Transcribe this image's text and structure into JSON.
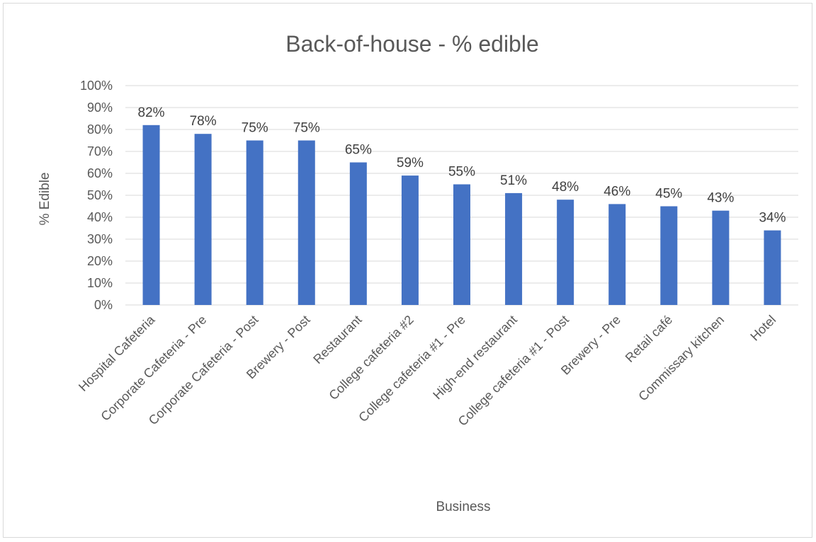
{
  "chart_data": {
    "type": "bar",
    "title": "Back-of-house - % edible",
    "xlabel": "Business",
    "ylabel": "% Edible",
    "categories": [
      "Hospital Cafeteria",
      "Corporate Cafeteria - Pre",
      "Corporate Cafeteria - Post",
      "Brewery - Post",
      "Restaurant",
      "College cafeteria #2",
      "College cafeteria #1 - Pre",
      "High-end restaurant",
      "College cafeteria #1 - Post",
      "Brewery - Pre",
      "Retail café",
      "Commissary kitchen",
      "Hotel"
    ],
    "values": [
      82,
      78,
      75,
      75,
      65,
      59,
      55,
      51,
      48,
      46,
      45,
      43,
      34
    ],
    "data_labels": [
      "82%",
      "78%",
      "75%",
      "75%",
      "65%",
      "59%",
      "55%",
      "51%",
      "48%",
      "46%",
      "45%",
      "43%",
      "34%"
    ],
    "ylim": [
      0,
      100
    ],
    "yticks": [
      "0%",
      "10%",
      "20%",
      "30%",
      "40%",
      "50%",
      "60%",
      "70%",
      "80%",
      "90%",
      "100%"
    ],
    "grid": true,
    "legend": "none",
    "bar_color": "#4472c4",
    "grid_color": "#d9d9d9",
    "text_color": "#595959"
  }
}
